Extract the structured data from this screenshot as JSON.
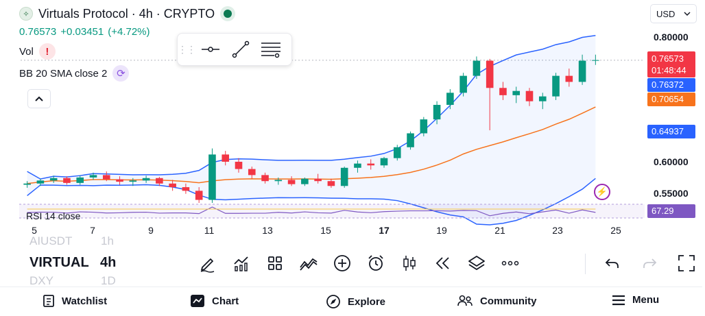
{
  "header": {
    "title": "Virtuals Protocol · 4h · CRYPTO",
    "last_price": "0.76573",
    "change": "+0.03451",
    "change_pct": "(+4.72%)",
    "vol_label": "Vol",
    "bb_label": "BB 20 SMA close 2"
  },
  "currency": {
    "value": "USD"
  },
  "price_axis": {
    "ticks": [
      "0.80000",
      "0.60000",
      "0.55000"
    ],
    "last_price_tag": "0.76573",
    "countdown": "01:48:44",
    "bb_upper_tag": "0.76372",
    "bb_basis_tag": "0.70654",
    "bb_lower_tag": "0.64937"
  },
  "rsi": {
    "label": "RSI 14 close",
    "value": "67.29"
  },
  "time_axis": {
    "ticks": [
      {
        "label": "5",
        "bold": false
      },
      {
        "label": "7",
        "bold": false
      },
      {
        "label": "9",
        "bold": false
      },
      {
        "label": "11",
        "bold": false
      },
      {
        "label": "13",
        "bold": false
      },
      {
        "label": "15",
        "bold": false
      },
      {
        "label": "17",
        "bold": true
      },
      {
        "label": "19",
        "bold": false
      },
      {
        "label": "21",
        "bold": false
      },
      {
        "label": "23",
        "bold": false
      },
      {
        "label": "25",
        "bold": false
      }
    ]
  },
  "symbols": {
    "prev_symbol": "AIUSDT",
    "prev_interval": "1h",
    "current_symbol": "VIRTUAL",
    "current_interval": "4h",
    "next_symbol": "DXY",
    "next_interval": "1D"
  },
  "nav": {
    "watchlist": "Watchlist",
    "chart": "Chart",
    "explore": "Explore",
    "community": "Community",
    "menu": "Menu"
  },
  "colors": {
    "up": "#089981",
    "down": "#f23645",
    "bb_band": "#2962ff",
    "bb_basis": "#f7731c",
    "rsi": "#7e57c2"
  },
  "chart_data": {
    "type": "candlestick",
    "symbol": "Virtuals Protocol",
    "interval": "4h",
    "ohlc_approx": [
      [
        0.56,
        0.566,
        0.555,
        0.562
      ],
      [
        0.562,
        0.57,
        0.558,
        0.567
      ],
      [
        0.567,
        0.575,
        0.563,
        0.571
      ],
      [
        0.571,
        0.574,
        0.56,
        0.563
      ],
      [
        0.563,
        0.575,
        0.56,
        0.572
      ],
      [
        0.572,
        0.58,
        0.568,
        0.576
      ],
      [
        0.576,
        0.582,
        0.566,
        0.569
      ],
      [
        0.569,
        0.574,
        0.56,
        0.565
      ],
      [
        0.565,
        0.571,
        0.558,
        0.567
      ],
      [
        0.567,
        0.575,
        0.563,
        0.571
      ],
      [
        0.571,
        0.573,
        0.558,
        0.562
      ],
      [
        0.562,
        0.568,
        0.55,
        0.556
      ],
      [
        0.556,
        0.562,
        0.545,
        0.55
      ],
      [
        0.55,
        0.556,
        0.53,
        0.535
      ],
      [
        0.535,
        0.62,
        0.53,
        0.61
      ],
      [
        0.61,
        0.616,
        0.592,
        0.598
      ],
      [
        0.598,
        0.604,
        0.58,
        0.586
      ],
      [
        0.586,
        0.59,
        0.57,
        0.576
      ],
      [
        0.576,
        0.58,
        0.562,
        0.566
      ],
      [
        0.566,
        0.572,
        0.56,
        0.568
      ],
      [
        0.568,
        0.574,
        0.558,
        0.561
      ],
      [
        0.561,
        0.572,
        0.558,
        0.57
      ],
      [
        0.57,
        0.578,
        0.562,
        0.566
      ],
      [
        0.566,
        0.57,
        0.555,
        0.558
      ],
      [
        0.558,
        0.59,
        0.555,
        0.588
      ],
      [
        0.588,
        0.6,
        0.58,
        0.595
      ],
      [
        0.595,
        0.602,
        0.585,
        0.592
      ],
      [
        0.592,
        0.606,
        0.588,
        0.604
      ],
      [
        0.604,
        0.626,
        0.6,
        0.622
      ],
      [
        0.622,
        0.648,
        0.618,
        0.645
      ],
      [
        0.645,
        0.672,
        0.64,
        0.668
      ],
      [
        0.668,
        0.698,
        0.66,
        0.692
      ],
      [
        0.692,
        0.718,
        0.685,
        0.712
      ],
      [
        0.712,
        0.745,
        0.706,
        0.74
      ],
      [
        0.74,
        0.772,
        0.735,
        0.765
      ],
      [
        0.765,
        0.768,
        0.65,
        0.72
      ],
      [
        0.72,
        0.73,
        0.7,
        0.708
      ],
      [
        0.708,
        0.722,
        0.695,
        0.715
      ],
      [
        0.715,
        0.72,
        0.69,
        0.698
      ],
      [
        0.698,
        0.712,
        0.685,
        0.706
      ],
      [
        0.706,
        0.745,
        0.7,
        0.74
      ],
      [
        0.74,
        0.752,
        0.722,
        0.73
      ],
      [
        0.73,
        0.775,
        0.725,
        0.765
      ],
      [
        0.765,
        0.775,
        0.758,
        0.766
      ]
    ],
    "bb_upper_last": 0.76372,
    "bb_basis_last": 0.70654,
    "bb_lower_last": 0.64937,
    "last": 0.76573,
    "rsi_last": 67.29
  }
}
